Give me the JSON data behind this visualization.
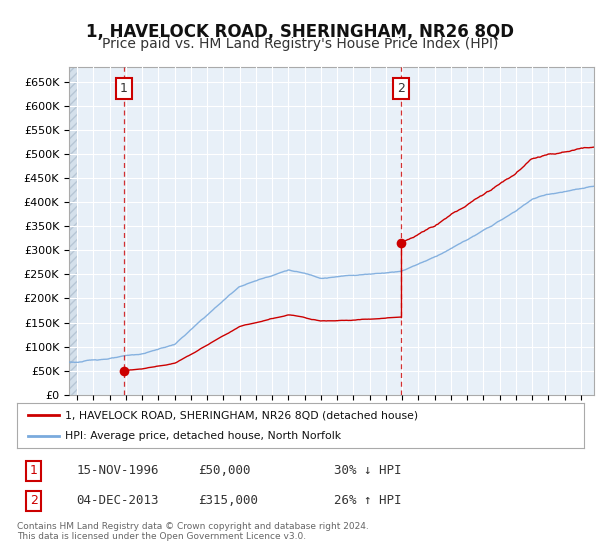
{
  "title": "1, HAVELOCK ROAD, SHERINGHAM, NR26 8QD",
  "subtitle": "Price paid vs. HM Land Registry's House Price Index (HPI)",
  "title_fontsize": 12,
  "subtitle_fontsize": 10,
  "background_color": "#e8f0f8",
  "grid_color": "#ffffff",
  "ylim": [
    0,
    680000
  ],
  "yticks": [
    0,
    50000,
    100000,
    150000,
    200000,
    250000,
    300000,
    350000,
    400000,
    450000,
    500000,
    550000,
    600000,
    650000
  ],
  "ytick_labels": [
    "£0",
    "£50K",
    "£100K",
    "£150K",
    "£200K",
    "£250K",
    "£300K",
    "£350K",
    "£400K",
    "£450K",
    "£500K",
    "£550K",
    "£600K",
    "£650K"
  ],
  "sale1_date": 1996.88,
  "sale1_price": 50000,
  "sale2_date": 2013.92,
  "sale2_price": 315000,
  "sale_color": "#cc0000",
  "hpi_color": "#7aaadd",
  "property_color": "#cc0000",
  "legend_label1": "1, HAVELOCK ROAD, SHERINGHAM, NR26 8QD (detached house)",
  "legend_label2": "HPI: Average price, detached house, North Norfolk",
  "table_row1": [
    "1",
    "15-NOV-1996",
    "£50,000",
    "30% ↓ HPI"
  ],
  "table_row2": [
    "2",
    "04-DEC-2013",
    "£315,000",
    "26% ↑ HPI"
  ],
  "footer": "Contains HM Land Registry data © Crown copyright and database right 2024.\nThis data is licensed under the Open Government Licence v3.0.",
  "xmin": 1993.5,
  "xmax": 2025.8
}
